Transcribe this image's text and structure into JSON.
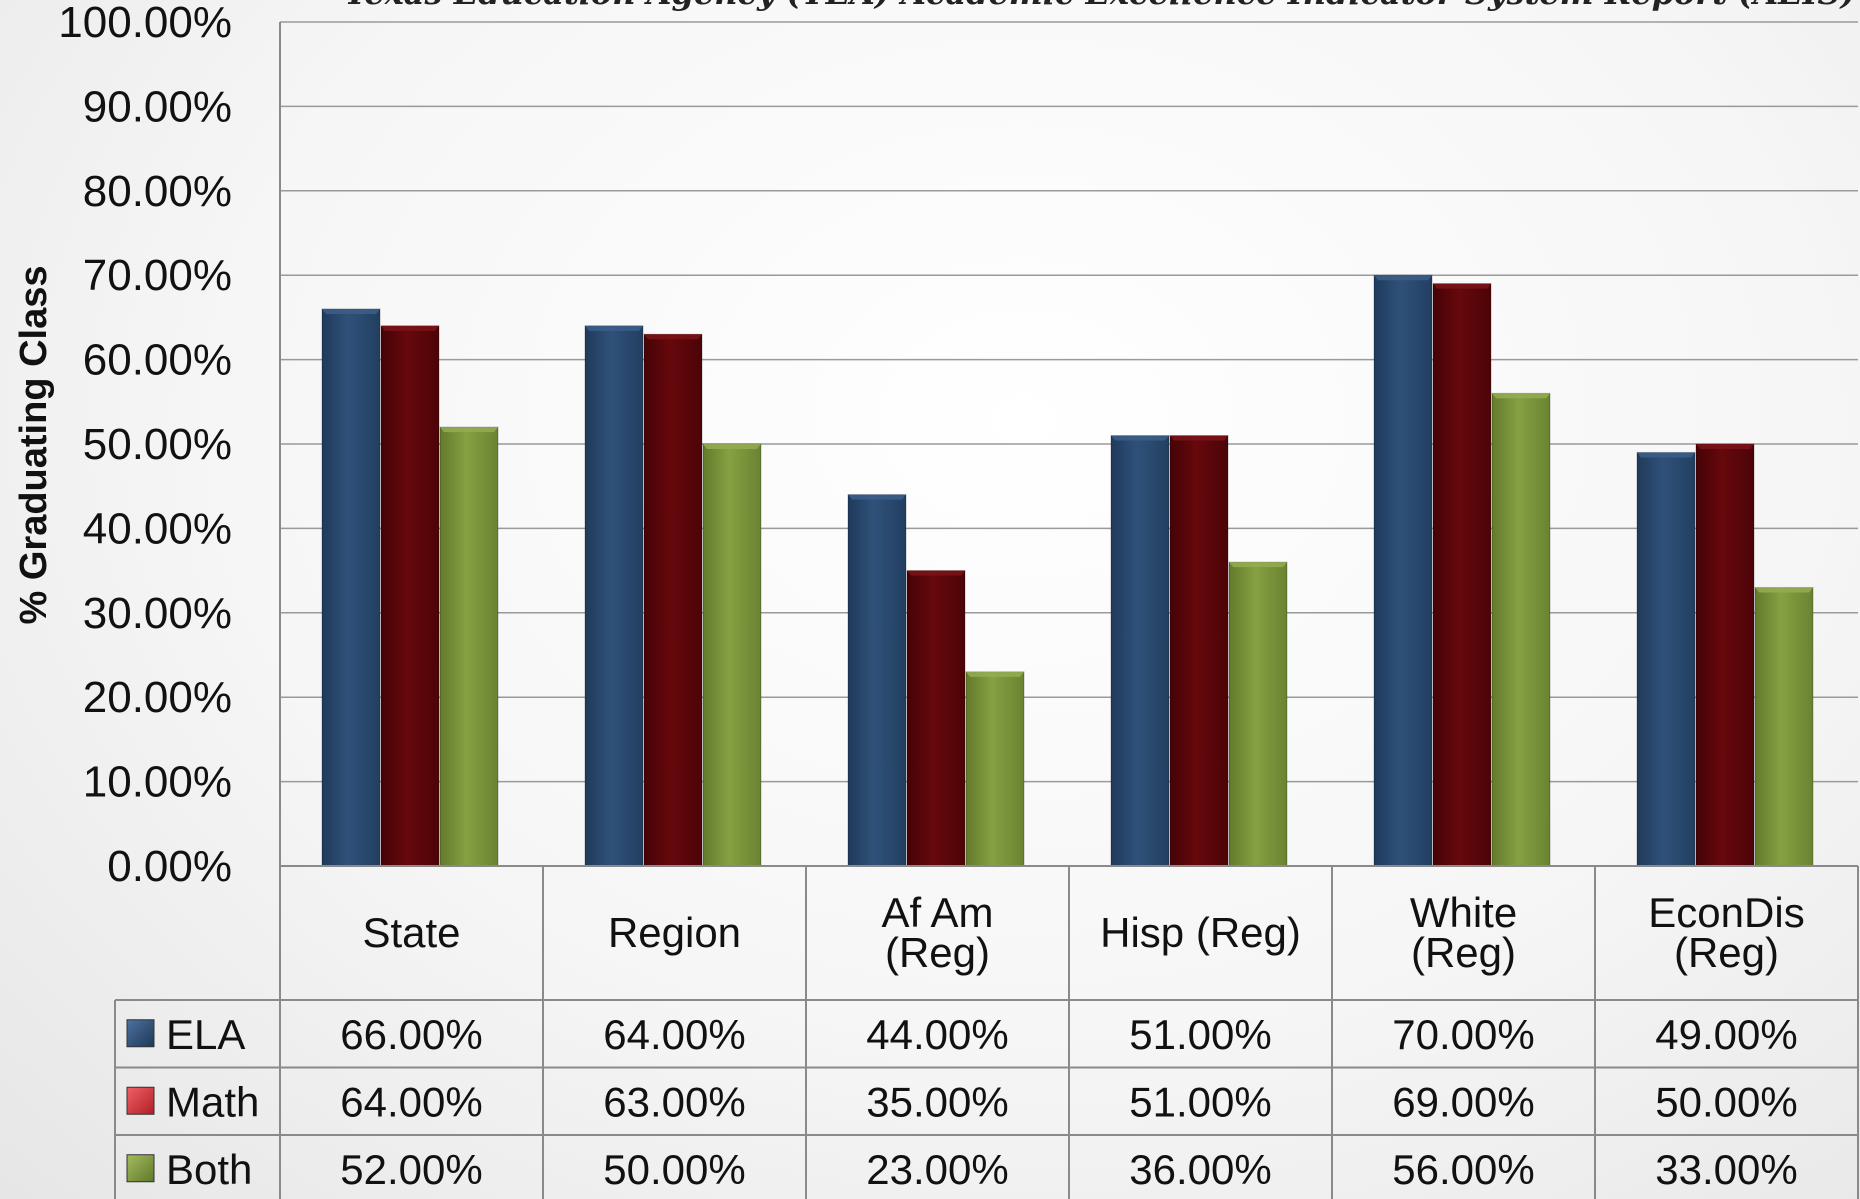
{
  "chart_data": {
    "type": "bar",
    "title": "Texas Education Agency (TEA) Academic Excellence Indicator System Report (AEIS)",
    "ylabel": "% Graduating Class",
    "xlabel": "",
    "ylim": [
      0,
      100
    ],
    "yticks": [
      "0.00%",
      "10.00%",
      "20.00%",
      "30.00%",
      "40.00%",
      "50.00%",
      "60.00%",
      "70.00%",
      "80.00%",
      "90.00%",
      "100.00%"
    ],
    "grid": true,
    "legend": "data-table-left",
    "categories": [
      [
        "State"
      ],
      [
        "Region"
      ],
      [
        "Af Am",
        "(Reg)"
      ],
      [
        "Hisp (Reg)"
      ],
      [
        "White",
        "(Reg)"
      ],
      [
        "EconDis",
        "(Reg)"
      ]
    ],
    "series": [
      {
        "name": "ELA",
        "color": "#2b4a6e",
        "values": [
          66,
          64,
          44,
          51,
          70,
          49
        ],
        "labels": [
          "66.00%",
          "64.00%",
          "44.00%",
          "51.00%",
          "70.00%",
          "49.00%"
        ]
      },
      {
        "name": "Math",
        "color": "#5c0609",
        "legend_color": "#d8333a",
        "values": [
          64,
          63,
          35,
          51,
          69,
          50
        ],
        "labels": [
          "64.00%",
          "63.00%",
          "35.00%",
          "51.00%",
          "69.00%",
          "50.00%"
        ]
      },
      {
        "name": "Both",
        "color": "#7a933a",
        "values": [
          52,
          50,
          23,
          36,
          56,
          33
        ],
        "labels": [
          "52.00%",
          "50.00%",
          "23.00%",
          "36.00%",
          "56.00%",
          "33.00%"
        ]
      }
    ]
  }
}
